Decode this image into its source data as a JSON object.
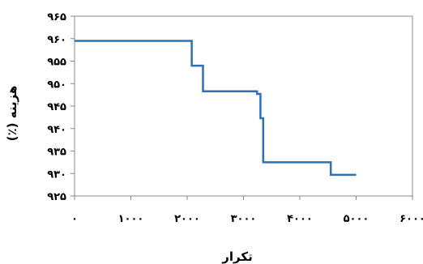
{
  "chart_data": {
    "type": "line",
    "title": "",
    "xlabel": "تکرار",
    "ylabel": "هزینه (٪)",
    "xlim": [
      0,
      6000
    ],
    "ylim": [
      925,
      965
    ],
    "x_ticks": [
      0,
      1000,
      2000,
      3000,
      4000,
      5000,
      6000
    ],
    "y_ticks": [
      925,
      930,
      935,
      940,
      945,
      950,
      955,
      960,
      965
    ],
    "x_tick_labels": [
      "٠",
      "١٠٠٠",
      "٢٠٠٠",
      "٣٠٠٠",
      "۴٠٠٠",
      "۵٠٠٠",
      "۶٠٠٠"
    ],
    "y_tick_labels": [
      "٩٢۵",
      "٩٣٠",
      "٩٣۵",
      "٩۴٠",
      "٩۴۵",
      "٩۵٠",
      "٩۵۵",
      "٩۶٠",
      "٩۶۵"
    ],
    "grid": false,
    "legend": "none",
    "line_color": "#2e6fb5",
    "series": [
      {
        "x": [
          0,
          2080,
          2080,
          2280,
          2280,
          3240,
          3240,
          3300,
          3300,
          3350,
          3350,
          3400,
          3400,
          4550,
          4550,
          5000
        ],
        "values": [
          959.5,
          959.5,
          954,
          954,
          948.3,
          948.3,
          947.7,
          947.7,
          942.3,
          942.3,
          932.5,
          932.5,
          932.5,
          932.5,
          929.7,
          929.7
        ]
      }
    ]
  }
}
